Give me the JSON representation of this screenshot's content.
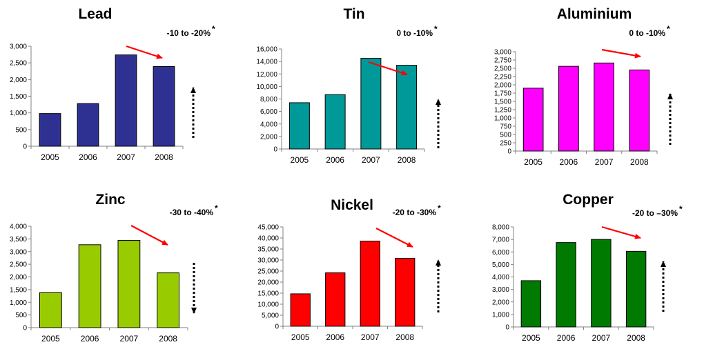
{
  "chart_data": [
    {
      "type": "bar",
      "title": "Lead",
      "annotation": "-10 to -20%",
      "annotation_mark": "*",
      "color": "#2e3192",
      "categories": [
        "2005",
        "2006",
        "2007",
        "2008"
      ],
      "values": [
        980,
        1280,
        2740,
        2390
      ],
      "ylim": [
        0,
        3000
      ],
      "yticks": [
        "0",
        "500",
        "1,000",
        "1,500",
        "2,000",
        "2,500",
        "3,000"
      ],
      "trend_arrow": "down",
      "outlook_arrow": "up"
    },
    {
      "type": "bar",
      "title": "Tin",
      "annotation": "0 to -10%",
      "annotation_mark": "*",
      "color": "#009999",
      "categories": [
        "2005",
        "2006",
        "2007",
        "2008"
      ],
      "values": [
        7400,
        8700,
        14500,
        13400
      ],
      "ylim": [
        0,
        16000
      ],
      "yticks": [
        "0",
        "2,000",
        "4,000",
        "6,000",
        "8,000",
        "10,000",
        "12,000",
        "14,000",
        "16,000"
      ],
      "trend_arrow": "down",
      "outlook_arrow": "up"
    },
    {
      "type": "bar",
      "title": "Aluminium",
      "annotation": "0 to -10%",
      "annotation_mark": "*",
      "color": "#ff00ff",
      "categories": [
        "2005",
        "2006",
        "2007",
        "2008"
      ],
      "values": [
        1900,
        2560,
        2660,
        2450
      ],
      "ylim": [
        0,
        3000
      ],
      "yticks": [
        "0",
        "250",
        "500",
        "750",
        "1,000",
        "1,250",
        "1,500",
        "1,750",
        "2,000",
        "2,250",
        "2,500",
        "2,750",
        "3,000"
      ],
      "trend_arrow": "down",
      "outlook_arrow": "up"
    },
    {
      "type": "bar",
      "title": "Zinc",
      "annotation": "-30 to -40%",
      "annotation_mark": "*",
      "color": "#99cc00",
      "categories": [
        "2005",
        "2006",
        "2007",
        "2008"
      ],
      "values": [
        1380,
        3270,
        3440,
        2160
      ],
      "ylim": [
        0,
        4000
      ],
      "yticks": [
        "0",
        "500",
        "1,000",
        "1,500",
        "2,000",
        "2,500",
        "3,000",
        "3,500",
        "4,000"
      ],
      "trend_arrow": "down",
      "outlook_arrow": "down"
    },
    {
      "type": "bar",
      "title": "Nickel",
      "annotation": "-20 to -30%",
      "annotation_mark": "*",
      "color": "#ff0000",
      "categories": [
        "2005",
        "2006",
        "2007",
        "2008"
      ],
      "values": [
        14700,
        24200,
        38600,
        30800
      ],
      "ylim": [
        0,
        45000
      ],
      "yticks": [
        "0",
        "5,000",
        "10,000",
        "15,000",
        "20,000",
        "25,000",
        "30,000",
        "35,000",
        "40,000",
        "45,000"
      ],
      "trend_arrow": "down",
      "outlook_arrow": "up"
    },
    {
      "type": "bar",
      "title": "Copper",
      "annotation": "-20 to –30%",
      "annotation_mark": "*",
      "color": "#007a00",
      "categories": [
        "2005",
        "2006",
        "2007",
        "2008"
      ],
      "values": [
        3700,
        6750,
        7000,
        6050
      ],
      "ylim": [
        0,
        8000
      ],
      "yticks": [
        "0",
        "1,000",
        "2,000",
        "3,000",
        "4,000",
        "5,000",
        "6,000",
        "7,000",
        "8,000"
      ],
      "trend_arrow": "down",
      "outlook_arrow": "up"
    }
  ],
  "colors": {
    "trend_arrow": "#ff0000",
    "outlook_arrow": "#000000",
    "axis": "#808080",
    "bar_outline": "#000000"
  }
}
